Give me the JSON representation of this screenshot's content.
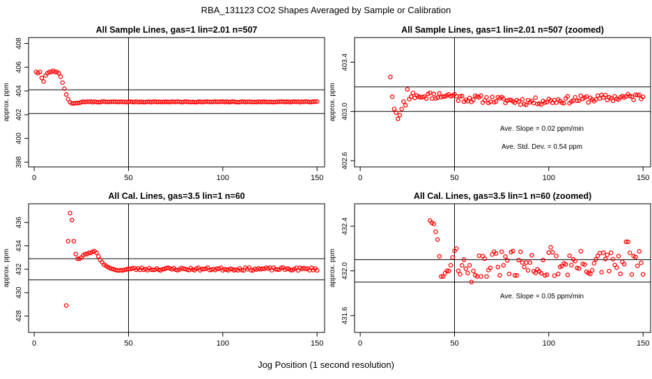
{
  "figure": {
    "title": "RBA_131123  CO2 Shapes Averaged by Sample or Calibration",
    "xlabel": "Jog Position (1 second resolution)"
  },
  "colors": {
    "points": "#ff0000",
    "lines": "#000000",
    "frame": "#000000"
  },
  "chart_data": [
    {
      "type": "scatter",
      "title": "All Sample Lines, gas=1 lin=2.01 n=507",
      "ylabel": "approx. ppm",
      "xlim": [
        -3,
        154
      ],
      "ylim": [
        397.6,
        408.5
      ],
      "xticks": [
        0,
        50,
        100,
        150
      ],
      "yticks": [
        398,
        400,
        402,
        404,
        406,
        408
      ],
      "vline": 50,
      "hlines": [
        402.1,
        404.1
      ],
      "annotations": [],
      "shape": "sample_full"
    },
    {
      "type": "scatter",
      "title": "All Sample Lines, gas=1 lin=2.01 n=507 (zoomed)",
      "ylabel": "approx. ppm",
      "xlim": [
        -3,
        154
      ],
      "ylim": [
        402.55,
        403.6
      ],
      "xticks": [
        0,
        50,
        100,
        150
      ],
      "yticks": [
        402.6,
        403.0,
        403.4
      ],
      "ytick_labels": [
        "402.6",
        "403.0",
        "403.4"
      ],
      "vline": 50,
      "hlines": [
        403.0,
        403.2
      ],
      "annotations": [
        "Ave. Slope =  0.02  ppm/min",
        "Ave. Std. Dev. =  0.54  ppm"
      ],
      "shape": "sample_zoom"
    },
    {
      "type": "scatter",
      "title": "All Cal. Lines, gas=3.5 lin=1 n=60",
      "ylabel": "approx. ppm",
      "xlim": [
        -3,
        154
      ],
      "ylim": [
        426.6,
        437.6
      ],
      "xticks": [
        0,
        50,
        100,
        150
      ],
      "yticks": [
        428,
        430,
        432,
        434,
        436
      ],
      "vline": 50,
      "hlines": [
        431.1,
        432.9
      ],
      "annotations": [],
      "shape": "cal_full"
    },
    {
      "type": "scatter",
      "title": "All Cal. Lines, gas=3.5 lin=1 n=60 (zoomed)",
      "ylabel": "approx. ppm",
      "xlim": [
        -3,
        154
      ],
      "ylim": [
        431.45,
        432.6
      ],
      "xticks": [
        0,
        50,
        100,
        150
      ],
      "yticks": [
        431.6,
        432.0,
        432.4
      ],
      "ytick_labels": [
        "431.6",
        "432.0",
        "432.4"
      ],
      "vline": 50,
      "hlines": [
        431.9,
        432.1
      ],
      "annotations": [
        "Ave. Slope =  0.05  ppm/min"
      ],
      "shape": "cal_zoom"
    }
  ]
}
